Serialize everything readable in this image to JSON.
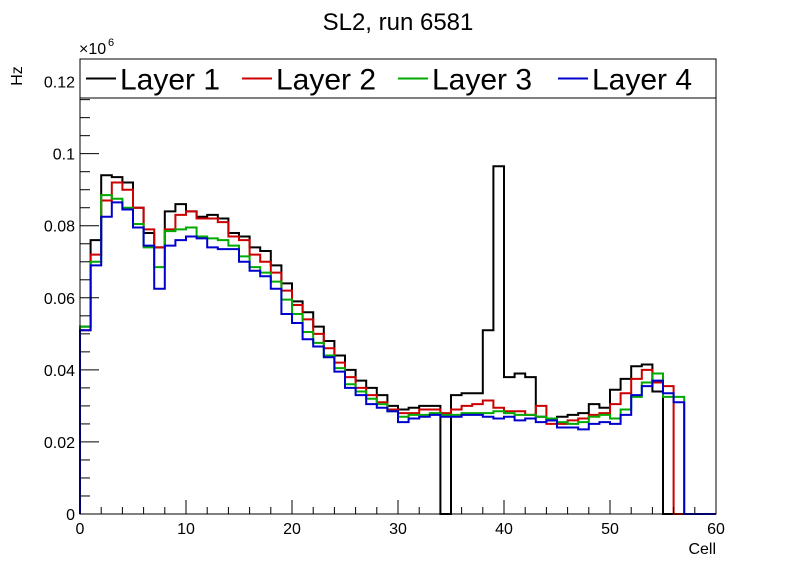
{
  "chart_data": {
    "type": "line",
    "title": "SL2, run 6581",
    "xlabel": "Cell",
    "ylabel": "Hz",
    "y_multiplier": "×10",
    "y_exponent": "6",
    "xlim": [
      0,
      60
    ],
    "ylim": [
      0,
      0.126
    ],
    "xticks": [
      "0",
      "10",
      "20",
      "30",
      "40",
      "50",
      "60"
    ],
    "yticks": [
      "0",
      "0.02",
      "0.04",
      "0.06",
      "0.08",
      "0.1",
      "0.12"
    ],
    "x_bin_edges": [
      0,
      1,
      2,
      3,
      4,
      5,
      6,
      7,
      8,
      9,
      10,
      11,
      12,
      13,
      14,
      15,
      16,
      17,
      18,
      19,
      20,
      21,
      22,
      23,
      24,
      25,
      26,
      27,
      28,
      29,
      30,
      31,
      32,
      33,
      34,
      35,
      36,
      37,
      38,
      39,
      40,
      41,
      42,
      43,
      44,
      45,
      46,
      47,
      48,
      49,
      50,
      51,
      52,
      53,
      54,
      55,
      56,
      57,
      58,
      59,
      60
    ],
    "legend_position": "top",
    "series": [
      {
        "name": "Layer 1",
        "color": "#000000",
        "values": [
          0.052,
          0.076,
          0.094,
          0.0935,
          0.092,
          0.085,
          0.078,
          0.074,
          0.084,
          0.086,
          0.084,
          0.0825,
          0.083,
          0.082,
          0.078,
          0.077,
          0.074,
          0.073,
          0.069,
          0.064,
          0.059,
          0.056,
          0.052,
          0.048,
          0.044,
          0.04,
          0.037,
          0.035,
          0.033,
          0.03,
          0.029,
          0.0295,
          0.03,
          0.03,
          0.0,
          0.033,
          0.0335,
          0.0335,
          0.051,
          0.0965,
          0.038,
          0.039,
          0.038,
          0.027,
          0.026,
          0.027,
          0.0275,
          0.028,
          0.0305,
          0.0295,
          0.0345,
          0.0375,
          0.041,
          0.0415,
          0.034,
          0.0,
          0.0,
          0.0,
          0.0,
          0.0
        ]
      },
      {
        "name": "Layer 2",
        "color": "#cc0000",
        "values": [
          0.051,
          0.072,
          0.087,
          0.092,
          0.09,
          0.085,
          0.079,
          0.074,
          0.079,
          0.083,
          0.084,
          0.082,
          0.082,
          0.081,
          0.077,
          0.076,
          0.072,
          0.07,
          0.067,
          0.062,
          0.058,
          0.054,
          0.05,
          0.046,
          0.042,
          0.038,
          0.035,
          0.033,
          0.031,
          0.029,
          0.028,
          0.028,
          0.029,
          0.029,
          0.028,
          0.029,
          0.03,
          0.0305,
          0.0315,
          0.0295,
          0.0285,
          0.0285,
          0.0275,
          0.03,
          0.025,
          0.025,
          0.026,
          0.0265,
          0.0275,
          0.028,
          0.0305,
          0.0335,
          0.0375,
          0.04,
          0.0365,
          0.0355,
          0.0,
          0.0,
          0.0,
          0.0
        ]
      },
      {
        "name": "Layer 3",
        "color": "#00aa00",
        "values": [
          0.052,
          0.07,
          0.0885,
          0.0875,
          0.085,
          0.0805,
          0.074,
          0.0685,
          0.0785,
          0.079,
          0.0795,
          0.077,
          0.0765,
          0.076,
          0.0745,
          0.0715,
          0.0685,
          0.067,
          0.0645,
          0.0595,
          0.0555,
          0.0505,
          0.0475,
          0.044,
          0.0405,
          0.036,
          0.034,
          0.032,
          0.0305,
          0.0285,
          0.027,
          0.0275,
          0.0275,
          0.028,
          0.0275,
          0.0275,
          0.028,
          0.028,
          0.028,
          0.0285,
          0.028,
          0.0275,
          0.0275,
          0.027,
          0.0265,
          0.0255,
          0.025,
          0.0255,
          0.027,
          0.0275,
          0.0265,
          0.029,
          0.0325,
          0.0365,
          0.039,
          0.0325,
          0.0325,
          0.0,
          0.0,
          0.0
        ]
      },
      {
        "name": "Layer 4",
        "color": "#0000cc",
        "values": [
          0.051,
          0.069,
          0.0825,
          0.0865,
          0.0845,
          0.0795,
          0.0745,
          0.0625,
          0.0745,
          0.076,
          0.077,
          0.0765,
          0.074,
          0.0735,
          0.0735,
          0.07,
          0.0675,
          0.066,
          0.0625,
          0.0555,
          0.053,
          0.0485,
          0.0465,
          0.0435,
          0.0395,
          0.035,
          0.033,
          0.0305,
          0.0295,
          0.0285,
          0.0255,
          0.0265,
          0.027,
          0.0275,
          0.027,
          0.027,
          0.0275,
          0.0275,
          0.027,
          0.0265,
          0.027,
          0.026,
          0.0265,
          0.0255,
          0.026,
          0.024,
          0.024,
          0.0235,
          0.025,
          0.0255,
          0.025,
          0.0275,
          0.033,
          0.0355,
          0.037,
          0.0335,
          0.031,
          0.0,
          0.0,
          0.0
        ]
      }
    ]
  },
  "colors": {
    "frame": "#000000",
    "background": "#ffffff"
  }
}
